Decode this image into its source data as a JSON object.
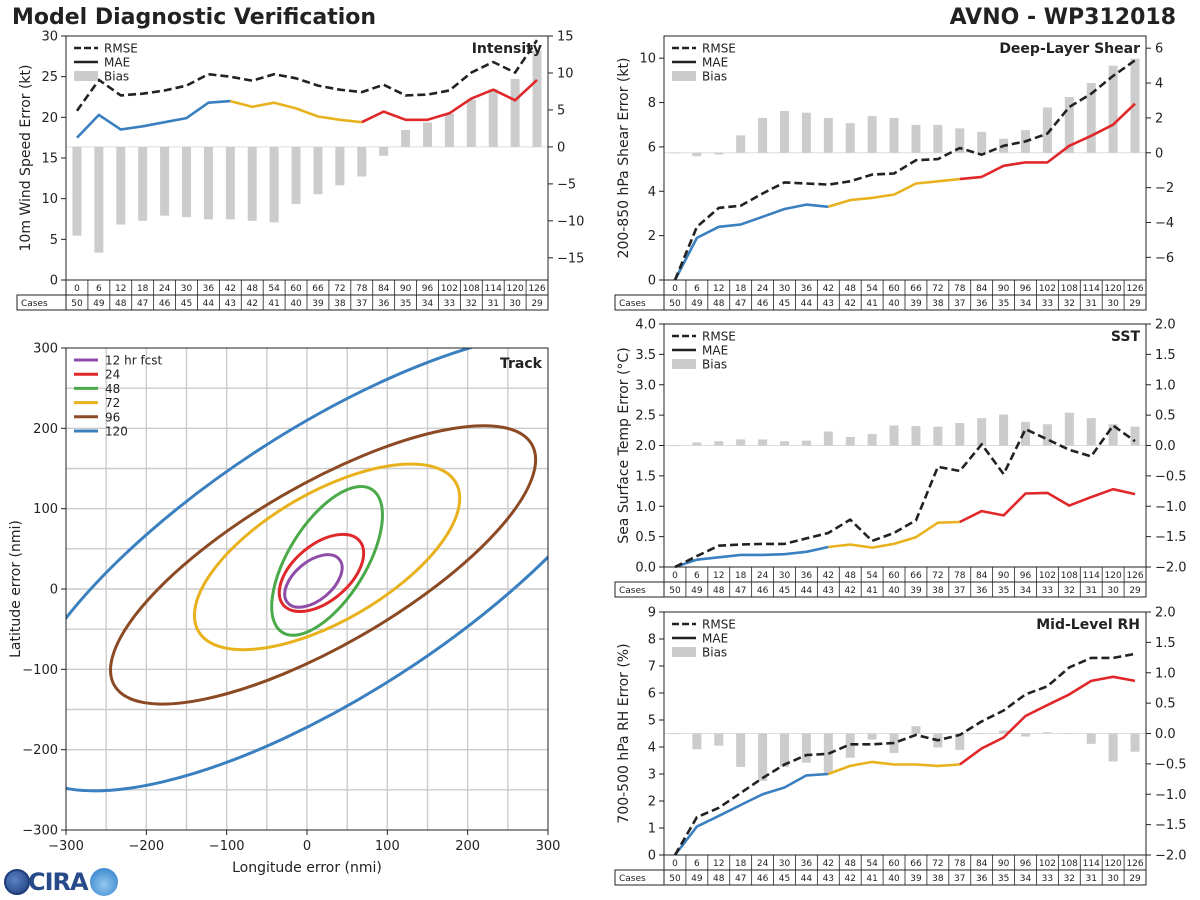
{
  "header": {
    "left_title": "Model Diagnostic Verification",
    "right_title": "AVNO - WP312018"
  },
  "logo": {
    "text": "CIRA"
  },
  "table": {
    "cases_label": "Cases",
    "hours": [
      0,
      6,
      12,
      18,
      24,
      30,
      36,
      42,
      48,
      54,
      60,
      66,
      72,
      78,
      84,
      90,
      96,
      102,
      108,
      114,
      120,
      126
    ],
    "cases": [
      50,
      49,
      48,
      47,
      46,
      45,
      44,
      43,
      42,
      41,
      40,
      39,
      38,
      37,
      36,
      35,
      34,
      33,
      32,
      31,
      30,
      29
    ]
  },
  "colors": {
    "rmse": "#222222",
    "mae_early": "#3a7fbf",
    "mae_mid": "#e8b21e",
    "mae_late": "#e0282a",
    "bias": "#cccccc",
    "grid": "#cccccc",
    "track": [
      "#8e4ca8",
      "#e0282a",
      "#4aaa4a",
      "#e8b21e",
      "#8b4a23",
      "#3a7fbf"
    ]
  },
  "legend_labels": {
    "rmse": "RMSE",
    "mae": "MAE",
    "bias": "Bias"
  },
  "chart_data": [
    {
      "id": "intensity",
      "type": "line",
      "title": "Intensity",
      "ylabel": "10m Wind Speed Error (kt)",
      "ylim": [
        0,
        30
      ],
      "yticks": [
        0,
        5,
        10,
        15,
        20,
        25,
        30
      ],
      "y2lim": [
        -18,
        15
      ],
      "y2ticks": [
        -15,
        -10,
        -5,
        0,
        5,
        10,
        15
      ],
      "x": [
        0,
        6,
        12,
        18,
        24,
        30,
        36,
        42,
        48,
        54,
        60,
        66,
        72,
        78,
        84,
        90,
        96,
        102,
        108,
        114,
        120,
        126
      ],
      "series": [
        {
          "name": "RMSE",
          "values": [
            20.8,
            24.6,
            22.7,
            22.9,
            23.3,
            23.9,
            25.3,
            25.0,
            24.5,
            25.3,
            24.8,
            23.9,
            23.4,
            23.1,
            24.0,
            22.7,
            22.8,
            23.3,
            25.5,
            26.8,
            25.5,
            29.5
          ]
        },
        {
          "name": "MAE",
          "values": [
            17.5,
            20.3,
            18.5,
            18.9,
            19.4,
            19.9,
            21.8,
            22.0,
            21.3,
            21.8,
            21.1,
            20.1,
            19.7,
            19.4,
            20.7,
            19.7,
            19.7,
            20.5,
            22.3,
            23.4,
            22.1,
            24.6
          ]
        },
        {
          "name": "Bias",
          "values": [
            -12.0,
            -14.3,
            -10.5,
            -10.0,
            -9.3,
            -9.5,
            -9.8,
            -9.8,
            -10.0,
            -10.2,
            -7.7,
            -6.4,
            -5.2,
            -4.0,
            -1.2,
            2.3,
            3.3,
            4.5,
            6.4,
            7.8,
            9.2,
            13.0
          ]
        }
      ]
    },
    {
      "id": "shear",
      "type": "line",
      "title": "Deep-Layer Shear",
      "ylabel": "200-850 hPa Shear Error (kt)",
      "ylim": [
        0,
        11
      ],
      "yticks": [
        0,
        2,
        4,
        6,
        8,
        10
      ],
      "y2lim": [
        -7.3,
        6.7
      ],
      "y2ticks": [
        -6,
        -4,
        -2,
        0,
        2,
        4,
        6
      ],
      "x": [
        0,
        6,
        12,
        18,
        24,
        30,
        36,
        42,
        48,
        54,
        60,
        66,
        72,
        78,
        84,
        90,
        96,
        102,
        108,
        114,
        120,
        126
      ],
      "series": [
        {
          "name": "RMSE",
          "values": [
            0.0,
            2.4,
            3.25,
            3.35,
            3.9,
            4.4,
            4.35,
            4.3,
            4.45,
            4.75,
            4.8,
            5.4,
            5.45,
            5.95,
            5.65,
            6.05,
            6.25,
            6.6,
            7.8,
            8.4,
            9.2,
            9.9
          ]
        },
        {
          "name": "MAE",
          "values": [
            0.0,
            1.9,
            2.4,
            2.5,
            2.85,
            3.2,
            3.4,
            3.3,
            3.6,
            3.7,
            3.85,
            4.35,
            4.45,
            4.55,
            4.65,
            5.15,
            5.3,
            5.3,
            6.05,
            6.5,
            7.0,
            7.95
          ]
        },
        {
          "name": "Bias",
          "values": [
            0.0,
            -0.2,
            -0.1,
            1.0,
            2.0,
            2.4,
            2.3,
            2.0,
            1.7,
            2.1,
            2.0,
            1.6,
            1.6,
            1.4,
            1.2,
            0.8,
            1.3,
            2.6,
            3.2,
            4.0,
            5.0,
            5.4
          ]
        }
      ]
    },
    {
      "id": "sst",
      "type": "line",
      "title": "SST",
      "ylabel": "Sea Surface Temp Error (°C)",
      "ylim": [
        0,
        4
      ],
      "yticks": [
        0.0,
        0.5,
        1.0,
        1.5,
        2.0,
        2.5,
        3.0,
        3.5,
        4.0
      ],
      "y2lim": [
        -2,
        2
      ],
      "y2ticks": [
        -2.0,
        -1.5,
        -1.0,
        -0.5,
        0.0,
        0.5,
        1.0,
        1.5,
        2.0
      ],
      "x": [
        0,
        6,
        12,
        18,
        24,
        30,
        36,
        42,
        48,
        54,
        60,
        66,
        72,
        78,
        84,
        90,
        96,
        102,
        108,
        114,
        120,
        126
      ],
      "series": [
        {
          "name": "RMSE",
          "values": [
            0.0,
            0.18,
            0.35,
            0.37,
            0.38,
            0.38,
            0.47,
            0.56,
            0.78,
            0.43,
            0.56,
            0.77,
            1.65,
            1.58,
            2.02,
            1.53,
            2.27,
            2.1,
            1.93,
            1.82,
            2.33,
            2.07
          ]
        },
        {
          "name": "MAE",
          "values": [
            0.0,
            0.12,
            0.16,
            0.2,
            0.2,
            0.21,
            0.25,
            0.33,
            0.37,
            0.32,
            0.38,
            0.49,
            0.73,
            0.74,
            0.92,
            0.85,
            1.21,
            1.22,
            1.01,
            1.15,
            1.28,
            1.2
          ]
        },
        {
          "name": "Bias",
          "values": [
            0.0,
            0.05,
            0.07,
            0.1,
            0.1,
            0.07,
            0.08,
            0.23,
            0.14,
            0.19,
            0.33,
            0.32,
            0.31,
            0.37,
            0.45,
            0.51,
            0.39,
            0.35,
            0.54,
            0.45,
            0.35,
            0.31
          ]
        }
      ]
    },
    {
      "id": "rh",
      "type": "line",
      "title": "Mid-Level RH",
      "ylabel": "700-500 hPa RH Error (%)",
      "ylim": [
        0,
        9
      ],
      "yticks": [
        0,
        1,
        2,
        3,
        4,
        5,
        6,
        7,
        8,
        9
      ],
      "y2lim": [
        -2,
        2
      ],
      "y2ticks": [
        -2.0,
        -1.5,
        -1.0,
        -0.5,
        0.0,
        0.5,
        1.0,
        1.5,
        2.0
      ],
      "x": [
        0,
        6,
        12,
        18,
        24,
        30,
        36,
        42,
        48,
        54,
        60,
        66,
        72,
        78,
        84,
        90,
        96,
        102,
        108,
        114,
        120,
        126
      ],
      "series": [
        {
          "name": "RMSE",
          "values": [
            0.0,
            1.4,
            1.75,
            2.3,
            2.85,
            3.35,
            3.7,
            3.75,
            4.1,
            4.1,
            4.15,
            4.45,
            4.25,
            4.45,
            4.95,
            5.35,
            5.95,
            6.25,
            6.95,
            7.3,
            7.3,
            7.45
          ]
        },
        {
          "name": "MAE",
          "values": [
            0.0,
            1.05,
            1.45,
            1.85,
            2.25,
            2.5,
            2.95,
            3.0,
            3.3,
            3.45,
            3.35,
            3.35,
            3.3,
            3.35,
            3.95,
            4.35,
            5.15,
            5.55,
            5.95,
            6.45,
            6.6,
            6.45
          ]
        },
        {
          "name": "Bias",
          "values": [
            0.0,
            -0.26,
            -0.2,
            -0.55,
            -0.78,
            -0.55,
            -0.48,
            -0.65,
            -0.4,
            -0.1,
            -0.32,
            0.12,
            -0.23,
            -0.27,
            0.0,
            0.05,
            -0.05,
            0.02,
            0.0,
            -0.17,
            -0.46,
            -0.3
          ]
        }
      ]
    },
    {
      "id": "track",
      "type": "ellipse",
      "title": "Track",
      "xlabel": "Longitude error (nmi)",
      "ylabel": "Latitude error (nmi)",
      "xlim": [
        -300,
        300
      ],
      "ylim": [
        -300,
        300
      ],
      "xticks": [
        -300,
        -200,
        -100,
        0,
        100,
        200,
        300
      ],
      "yticks": [
        -300,
        -200,
        -100,
        0,
        100,
        200,
        300
      ],
      "ellipses": [
        {
          "label": "12 hr fcst",
          "cx": 8,
          "cy": 10,
          "a": 42,
          "b": 24,
          "angle_deg": 40
        },
        {
          "label": "24",
          "cx": 18,
          "cy": 20,
          "a": 62,
          "b": 35,
          "angle_deg": 40
        },
        {
          "label": "48",
          "cx": 25,
          "cy": 35,
          "a": 105,
          "b": 48,
          "angle_deg": 58
        },
        {
          "label": "72",
          "cx": 25,
          "cy": 40,
          "a": 185,
          "b": 80,
          "angle_deg": 30
        },
        {
          "label": "96",
          "cx": 20,
          "cy": 30,
          "a": 300,
          "b": 100,
          "angle_deg": 30
        },
        {
          "label": "120",
          "cx": 30,
          "cy": 35,
          "a": 460,
          "b": 165,
          "angle_deg": 33
        }
      ]
    }
  ]
}
